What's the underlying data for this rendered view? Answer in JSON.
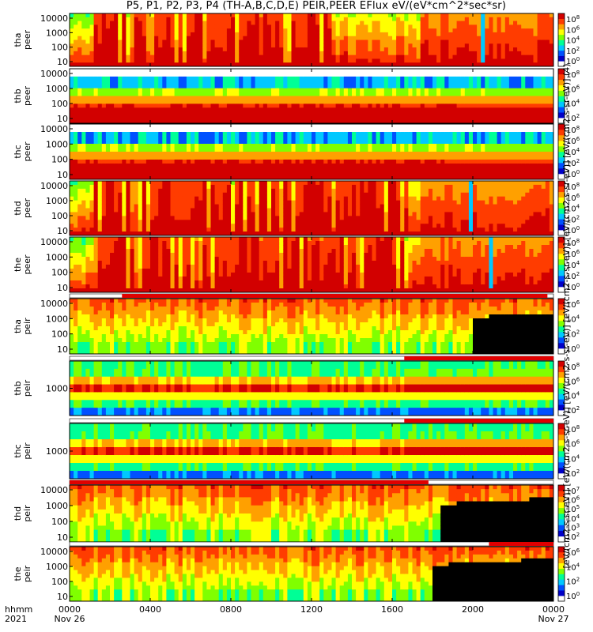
{
  "title": "P5, P1, P2, P3, P4 (TH-A,B,C,D,E) PEIR,PEER EFlux eV/(eV*cm^2*sec*sr)",
  "colorbar_caption": "[eV/(cm2-s-sr-eV)] [eV/(cm2-s-sr-eV)] [eV/(cm2-s-sr-eV)] [eV/(cm2-s-sr-eV)] [eV/(cm2-s-sr-eV)] [eV/(cm2-s-sr-eV)] (4)",
  "x_axis": {
    "label_line1": "hhmm",
    "label_line2": "2021",
    "range_hours": [
      0,
      24
    ],
    "ticks": [
      {
        "hour": 0,
        "label": "0000",
        "sublabel": "Nov 26"
      },
      {
        "hour": 4,
        "label": "0400",
        "sublabel": ""
      },
      {
        "hour": 8,
        "label": "0800",
        "sublabel": ""
      },
      {
        "hour": 12,
        "label": "1200",
        "sublabel": ""
      },
      {
        "hour": 16,
        "label": "1600",
        "sublabel": ""
      },
      {
        "hour": 20,
        "label": "2000",
        "sublabel": ""
      },
      {
        "hour": 24,
        "label": "0000",
        "sublabel": "Nov 27"
      }
    ]
  },
  "colormap": [
    "#ffffff",
    "#0000c8",
    "#0050ff",
    "#00c8ff",
    "#00ff96",
    "#80ff00",
    "#ffff00",
    "#ffa000",
    "#ff3c00",
    "#d20000"
  ],
  "chart_data": [
    {
      "type": "heatmap",
      "probe": "tha",
      "species": "peer",
      "ylabel": [
        "tha",
        "peer"
      ],
      "yticks": [
        "10",
        "100",
        "1000",
        "10000"
      ],
      "cbar_ticks": [
        "10^8",
        "10^6",
        "10^4",
        "10^2",
        "10^0"
      ],
      "mode_bar": false
    },
    {
      "type": "heatmap",
      "probe": "thb",
      "species": "peer",
      "ylabel": [
        "thb",
        "peer"
      ],
      "yticks": [
        "10",
        "100",
        "1000",
        "10000"
      ],
      "cbar_ticks": [
        "10^8",
        "10^6",
        "10^4",
        "10^2"
      ],
      "mode_bar": false
    },
    {
      "type": "heatmap",
      "probe": "thc",
      "species": "peer",
      "ylabel": [
        "thc",
        "peer"
      ],
      "yticks": [
        "10",
        "100",
        "1000",
        "10000"
      ],
      "cbar_ticks": [
        "10^8",
        "10^6",
        "10^4",
        "10^2",
        "10^0"
      ],
      "mode_bar": false
    },
    {
      "type": "heatmap",
      "probe": "thd",
      "species": "peer",
      "ylabel": [
        "thd",
        "peer"
      ],
      "yticks": [
        "10",
        "100",
        "1000",
        "10000"
      ],
      "cbar_ticks": [
        "10^8",
        "10^6",
        "10^4",
        "10^2",
        "10^0"
      ],
      "mode_bar": false
    },
    {
      "type": "heatmap",
      "probe": "the",
      "species": "peer",
      "ylabel": [
        "the",
        "peer"
      ],
      "yticks": [
        "10",
        "100",
        "1000",
        "10000"
      ],
      "cbar_ticks": [
        "10^8",
        "10^6",
        "10^4",
        "10^2",
        "10^0"
      ],
      "mode_bar": false
    },
    {
      "type": "heatmap",
      "probe": "tha",
      "species": "peir",
      "ylabel": [
        "tha",
        "peir"
      ],
      "yticks": [
        "10",
        "100",
        "1000",
        "10000"
      ],
      "cbar_ticks": [
        "10^6",
        "10^4",
        "10^2",
        "10^0"
      ],
      "mode_bar": true,
      "mode_red_hours": [
        [
          2.6,
          23.7
        ]
      ]
    },
    {
      "type": "heatmap",
      "probe": "thb",
      "species": "peir",
      "ylabel": [
        "thb",
        "peir"
      ],
      "yticks": [
        "1000"
      ],
      "cbar_ticks": [
        "10^8",
        "10^6",
        "10^4",
        "10^2"
      ],
      "mode_bar": true,
      "mode_red_hours": [
        [
          16.6,
          24
        ]
      ]
    },
    {
      "type": "heatmap",
      "probe": "thc",
      "species": "peir",
      "ylabel": [
        "thc",
        "peir"
      ],
      "yticks": [
        "1000"
      ],
      "cbar_ticks": [
        "10^8",
        "10^6",
        "10^4",
        "10^2"
      ],
      "mode_bar": true,
      "mode_red_hours": [
        [
          16.6,
          24
        ]
      ]
    },
    {
      "type": "heatmap",
      "probe": "thd",
      "species": "peir",
      "ylabel": [
        "thd",
        "peir"
      ],
      "yticks": [
        "10",
        "100",
        "1000",
        "10000"
      ],
      "cbar_ticks": [
        "10^7",
        "10^6",
        "10^5",
        "10^4",
        "10^3",
        "10^2"
      ],
      "mode_bar": true,
      "mode_red_hours": [
        [
          0,
          17.8
        ]
      ]
    },
    {
      "type": "heatmap",
      "probe": "the",
      "species": "peir",
      "ylabel": [
        "the",
        "peir"
      ],
      "yticks": [
        "10",
        "100",
        "1000",
        "10000"
      ],
      "cbar_ticks": [
        "10^6",
        "10^4",
        "10^2",
        "10^0"
      ],
      "mode_bar": true,
      "mode_red_hours": [
        [
          20.8,
          24
        ]
      ]
    }
  ]
}
